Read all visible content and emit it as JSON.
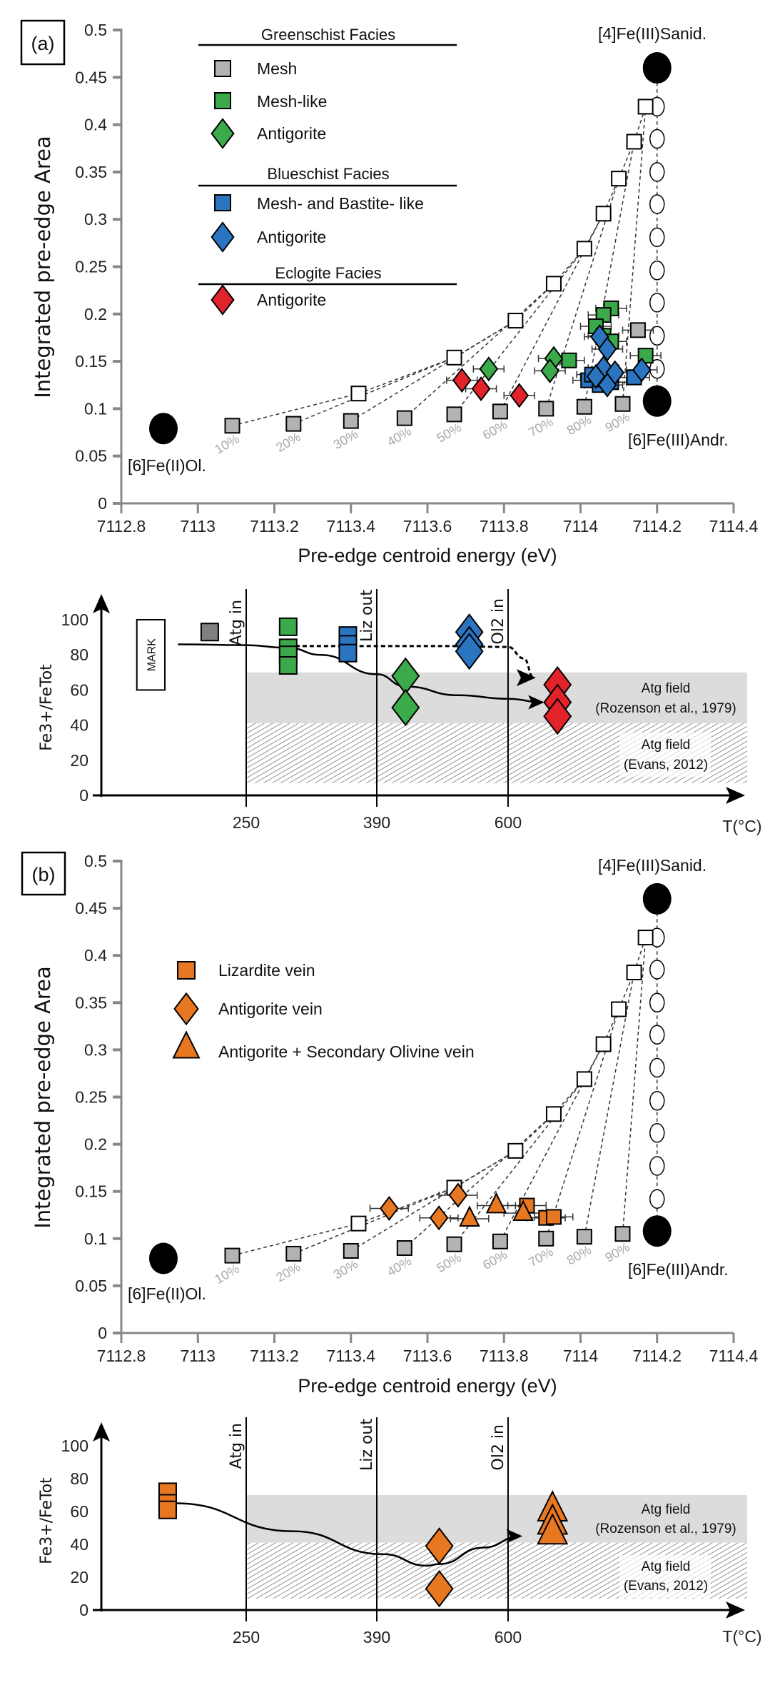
{
  "panels": {
    "a": "(a)",
    "b": "(b)"
  },
  "colors": {
    "mesh": "#b3b3b3",
    "green": "#3aaa4a",
    "blue": "#2b74c0",
    "red": "#e3232a",
    "orange": "#e87722",
    "axis": "#888888",
    "field_gray": "#dcdcdc"
  },
  "chart_data": [
    {
      "id": "a-scatter",
      "type": "scatter",
      "xlabel": "Pre-edge centroid energy (eV)",
      "ylabel": "Integrated pre-edge Area",
      "xlim": [
        7112.8,
        7114.4
      ],
      "ylim": [
        0,
        0.5
      ],
      "grid": false,
      "xticks": [
        "7112.8",
        "7113",
        "7113.2",
        "7113.4",
        "7113.6",
        "7113.8",
        "7114",
        "7114.2",
        "7114.4"
      ],
      "yticks": [
        "0",
        "0.05",
        "0.1",
        "0.15",
        "0.2",
        "0.25",
        "0.3",
        "0.35",
        "0.4",
        "0.45",
        "0.5"
      ],
      "references": {
        "ol": {
          "label": "[6]Fe(II)Ol.",
          "x": 7112.91,
          "y": 0.079
        },
        "andr": {
          "label": "[6]Fe(III)Andr.",
          "x": 7114.2,
          "y": 0.108
        },
        "sanid": {
          "label": "[4]Fe(III)Sanid.",
          "x": 7114.2,
          "y": 0.46
        }
      },
      "mixtures": {
        "labels": [
          "10%",
          "20%",
          "30%",
          "40%",
          "50%",
          "60%",
          "70%",
          "80%",
          "90%"
        ],
        "ol_andr": [
          [
            7113.09,
            0.082
          ],
          [
            7113.25,
            0.084
          ],
          [
            7113.4,
            0.087
          ],
          [
            7113.54,
            0.09
          ],
          [
            7113.67,
            0.094
          ],
          [
            7113.79,
            0.097
          ],
          [
            7113.91,
            0.1
          ],
          [
            7114.01,
            0.102
          ],
          [
            7114.11,
            0.105
          ]
        ],
        "ol_sanid": [
          [
            7113.42,
            0.116
          ],
          [
            7113.67,
            0.154
          ],
          [
            7113.83,
            0.193
          ],
          [
            7113.93,
            0.232
          ],
          [
            7114.01,
            0.269
          ],
          [
            7114.06,
            0.306
          ],
          [
            7114.1,
            0.343
          ],
          [
            7114.14,
            0.382
          ],
          [
            7114.17,
            0.419
          ]
        ],
        "andr_sanid": [
          [
            7114.2,
            0.142
          ],
          [
            7114.2,
            0.177
          ],
          [
            7114.2,
            0.212
          ],
          [
            7114.2,
            0.246
          ],
          [
            7114.2,
            0.281
          ],
          [
            7114.2,
            0.316
          ],
          [
            7114.2,
            0.35
          ],
          [
            7114.2,
            0.385
          ],
          [
            7114.2,
            0.419
          ]
        ]
      },
      "legend": {
        "placement": "top-left",
        "groups": [
          {
            "title": "Greenschist Facies",
            "items": [
              {
                "label": "Mesh",
                "marker": "square",
                "color": "#b3b3b3"
              },
              {
                "label": "Mesh-like",
                "marker": "square",
                "color": "#3aaa4a"
              },
              {
                "label": "Antigorite",
                "marker": "diamond",
                "color": "#3aaa4a"
              }
            ]
          },
          {
            "title": "Blueschist Facies",
            "items": [
              {
                "label": "Mesh- and Bastite- like",
                "marker": "square",
                "color": "#2b74c0"
              },
              {
                "label": "Antigorite",
                "marker": "diamond",
                "color": "#2b74c0"
              }
            ]
          },
          {
            "title": "Eclogite Facies",
            "items": [
              {
                "label": "Antigorite",
                "marker": "diamond",
                "color": "#e3232a"
              }
            ]
          }
        ]
      },
      "series": [
        {
          "name": "Mesh",
          "marker": "square",
          "color": "#b3b3b3",
          "xerr": 0.04,
          "points": [
            [
              7114.15,
              0.183
            ]
          ]
        },
        {
          "name": "Mesh-like",
          "marker": "square",
          "color": "#3aaa4a",
          "xerr": 0.04,
          "points": [
            [
              7114.08,
              0.206
            ],
            [
              7114.06,
              0.199
            ],
            [
              7114.04,
              0.187
            ],
            [
              7114.06,
              0.177
            ],
            [
              7114.08,
              0.171
            ],
            [
              7114.17,
              0.156
            ],
            [
              7113.97,
              0.151
            ]
          ]
        },
        {
          "name": "Antigorite",
          "marker": "diamond",
          "color": "#3aaa4a",
          "xerr": 0.04,
          "points": [
            [
              7113.93,
              0.153
            ],
            [
              7113.92,
              0.14
            ],
            [
              7113.76,
              0.142
            ]
          ]
        },
        {
          "name": "Mesh- and Bastite- like",
          "marker": "square",
          "color": "#2b74c0",
          "xerr": 0.04,
          "points": [
            [
              7114.02,
              0.13
            ],
            [
              7114.05,
              0.125
            ],
            [
              7114.08,
              0.128
            ],
            [
              7114.14,
              0.133
            ],
            [
              7114.03,
              0.136
            ],
            [
              7114.06,
              0.131
            ]
          ]
        },
        {
          "name": "Antigorite",
          "marker": "diamond",
          "color": "#2b74c0",
          "xerr": 0.04,
          "points": [
            [
              7114.05,
              0.176
            ],
            [
              7114.07,
              0.163
            ],
            [
              7114.06,
              0.143
            ],
            [
              7114.09,
              0.138
            ],
            [
              7114.16,
              0.141
            ],
            [
              7114.04,
              0.134
            ],
            [
              7114.07,
              0.125
            ]
          ]
        },
        {
          "name": "Antigorite",
          "marker": "diamond",
          "color": "#e3232a",
          "xerr": 0.04,
          "points": [
            [
              7113.69,
              0.13
            ],
            [
              7113.74,
              0.121
            ],
            [
              7113.84,
              0.114
            ]
          ]
        }
      ]
    },
    {
      "id": "a-temperature",
      "type": "scatter",
      "xlabel": "T(°C)",
      "ylabel": "Fe3+/FeTot",
      "ylim": [
        0,
        100
      ],
      "yticks": [
        "0",
        "20",
        "40",
        "60",
        "80",
        "100"
      ],
      "xticks": [
        "250",
        "390",
        "600"
      ],
      "boundaries": [
        {
          "t": 250,
          "label": "Atg in"
        },
        {
          "t": 390,
          "label": "Liz out"
        },
        {
          "t": 600,
          "label": "Ol2 in"
        }
      ],
      "fields": [
        {
          "label": "Atg field",
          "ref": "(Rozenson et al., 1979)",
          "range": [
            41,
            70
          ],
          "style": "gray"
        },
        {
          "label": "Atg field",
          "ref": "(Evans, 2012)",
          "range": [
            7,
            41
          ],
          "style": "hatched"
        }
      ],
      "mark_box": {
        "label": "MARK",
        "t": [
          133,
          163
        ],
        "range": [
          60,
          100
        ]
      },
      "series": [
        {
          "marker": "square",
          "color": "#808080",
          "points": [
            [
              211,
              93
            ]
          ]
        },
        {
          "marker": "square",
          "color": "#3aaa4a",
          "points": [
            [
              295,
              96
            ],
            [
              295,
              84
            ],
            [
              295,
              80
            ],
            [
              295,
              74
            ]
          ]
        },
        {
          "marker": "square",
          "color": "#2b74c0",
          "points": [
            [
              359,
              91
            ],
            [
              359,
              86
            ],
            [
              359,
              81
            ]
          ]
        },
        {
          "marker": "diamond",
          "color": "#3aaa4a",
          "points": [
            [
              436,
              68
            ],
            [
              436,
              50
            ]
          ]
        },
        {
          "marker": "diamond",
          "color": "#2b74c0",
          "points": [
            [
              538,
              93
            ],
            [
              538,
              86
            ],
            [
              538,
              82
            ]
          ]
        },
        {
          "marker": "diamond",
          "color": "#e3232a",
          "points": [
            [
              679,
              63
            ],
            [
              679,
              53
            ],
            [
              679,
              45
            ]
          ]
        }
      ],
      "paths": [
        {
          "style": "solid",
          "points": [
            [
              177,
              86
            ],
            [
              250,
              85.5
            ],
            [
              295,
              84
            ],
            [
              330,
              80
            ],
            [
              390,
              69
            ],
            [
              436,
              62
            ],
            [
              520,
              57
            ],
            [
              600,
              55
            ],
            [
              655,
              53
            ]
          ]
        },
        {
          "style": "dashed",
          "points": [
            [
              295,
              85
            ],
            [
              400,
              85
            ],
            [
              500,
              85
            ],
            [
              600,
              84.5
            ],
            [
              625,
              78
            ],
            [
              641,
              67
            ]
          ]
        }
      ]
    },
    {
      "id": "b-scatter",
      "type": "scatter",
      "xlabel": "Pre-edge centroid energy (eV)",
      "ylabel": "Integrated pre-edge Area",
      "xlim": [
        7112.8,
        7114.4
      ],
      "ylim": [
        0,
        0.5
      ],
      "grid": false,
      "xticks": [
        "7112.8",
        "7113",
        "7113.2",
        "7113.4",
        "7113.6",
        "7113.8",
        "7114",
        "7114.2",
        "7114.4"
      ],
      "yticks": [
        "0",
        "0.05",
        "0.1",
        "0.15",
        "0.2",
        "0.25",
        "0.3",
        "0.35",
        "0.4",
        "0.45",
        "0.5"
      ],
      "references": {
        "ol": {
          "label": "[6]Fe(II)Ol.",
          "x": 7112.91,
          "y": 0.079
        },
        "andr": {
          "label": "[6]Fe(III)Andr.",
          "x": 7114.2,
          "y": 0.108
        },
        "sanid": {
          "label": "[4]Fe(III)Sanid.",
          "x": 7114.2,
          "y": 0.46
        }
      },
      "legend": {
        "placement": "top-left",
        "items": [
          {
            "label": "Lizardite vein",
            "marker": "square",
            "color": "#e87722"
          },
          {
            "label": "Antigorite vein",
            "marker": "diamond",
            "color": "#e87722"
          },
          {
            "label": "Antigorite + Secondary Olivine vein",
            "marker": "triangle",
            "color": "#e87722"
          }
        ]
      },
      "series": [
        {
          "name": "Lizardite vein",
          "marker": "square",
          "color": "#e87722",
          "xerr": 0.05,
          "points": [
            [
              7113.86,
              0.135
            ],
            [
              7113.91,
              0.122
            ],
            [
              7113.93,
              0.123
            ]
          ]
        },
        {
          "name": "Antigorite vein",
          "marker": "diamond",
          "color": "#e87722",
          "xerr": 0.05,
          "points": [
            [
              7113.5,
              0.132
            ],
            [
              7113.63,
              0.122
            ],
            [
              7113.68,
              0.146
            ]
          ]
        },
        {
          "name": "Antigorite + Secondary Olivine vein",
          "marker": "triangle",
          "color": "#e87722",
          "xerr": 0.05,
          "points": [
            [
              7113.71,
              0.121
            ],
            [
              7113.78,
              0.135
            ],
            [
              7113.85,
              0.127
            ]
          ]
        }
      ]
    },
    {
      "id": "b-temperature",
      "type": "scatter",
      "xlabel": "T(°C)",
      "ylabel": "Fe3+/FeTot",
      "ylim": [
        0,
        100
      ],
      "yticks": [
        "0",
        "20",
        "40",
        "60",
        "80",
        "100"
      ],
      "xticks": [
        "250",
        "390",
        "600"
      ],
      "boundaries": [
        {
          "t": 250,
          "label": "Atg in"
        },
        {
          "t": 390,
          "label": "Liz out"
        },
        {
          "t": 600,
          "label": "Ol2 in"
        }
      ],
      "fields": [
        {
          "label": "Atg field",
          "ref": "(Rozenson et al., 1979)",
          "range": [
            41,
            70
          ],
          "style": "gray"
        },
        {
          "label": "Atg field",
          "ref": "(Evans, 2012)",
          "range": [
            7,
            41
          ],
          "style": "hatched"
        }
      ],
      "series": [
        {
          "marker": "square",
          "color": "#e87722",
          "points": [
            [
              166,
              72
            ],
            [
              166,
              65
            ],
            [
              166,
              61
            ]
          ]
        },
        {
          "marker": "diamond",
          "color": "#e87722",
          "points": [
            [
              490,
              39
            ],
            [
              490,
              13
            ]
          ]
        },
        {
          "marker": "triangle",
          "color": "#e87722",
          "points": [
            [
              671,
              61
            ],
            [
              671,
              53
            ],
            [
              671,
              47
            ]
          ]
        }
      ],
      "paths": [
        {
          "style": "solid",
          "points": [
            [
              175,
              65
            ],
            [
              300,
              48
            ],
            [
              400,
              34
            ],
            [
              470,
              27
            ],
            [
              490,
              28
            ],
            [
              560,
              38
            ],
            [
              620,
              45
            ]
          ]
        }
      ]
    }
  ]
}
